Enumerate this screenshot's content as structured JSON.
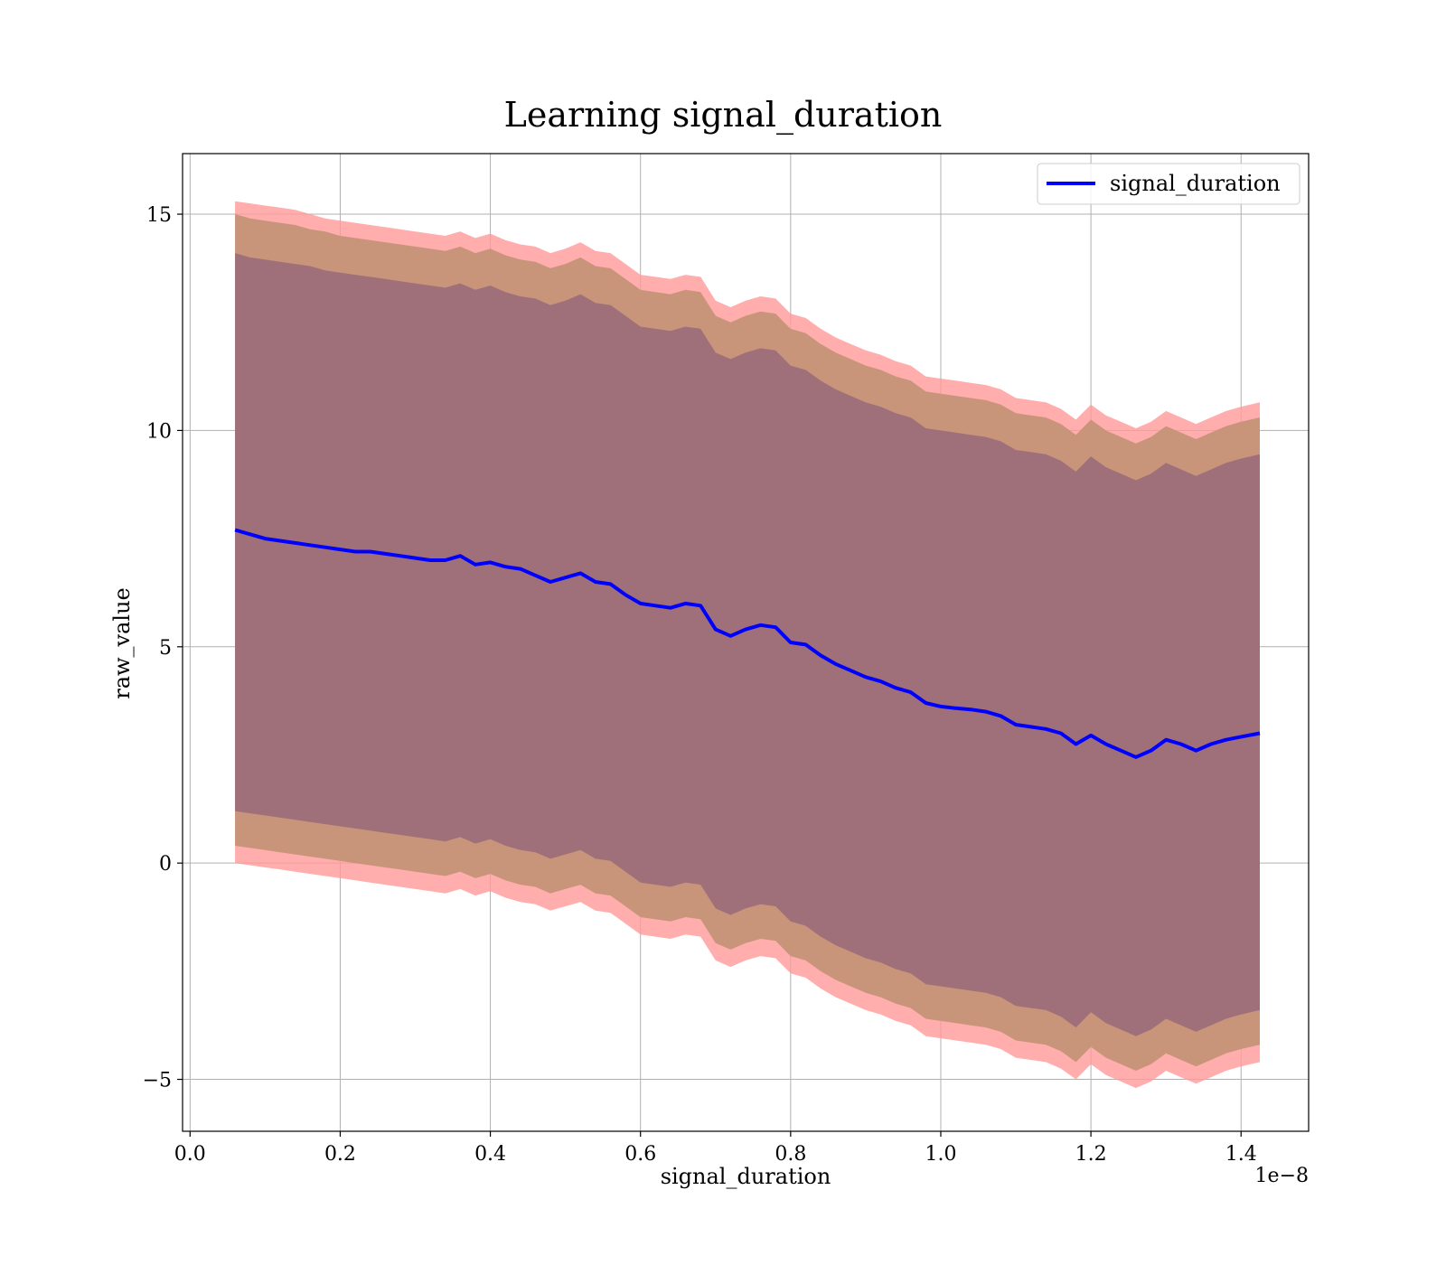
{
  "chart_data": {
    "type": "line",
    "title": "Learning signal_duration",
    "xlabel": "signal_duration",
    "ylabel": "raw_value",
    "x_offset_label": "1e−8",
    "xlim": [
      -0.01,
      1.49
    ],
    "ylim": [
      -6.2,
      16.4
    ],
    "x_ticks": [
      0.0,
      0.2,
      0.4,
      0.6,
      0.8,
      1.0,
      1.2,
      1.4
    ],
    "x_tick_labels": [
      "0.0",
      "0.2",
      "0.4",
      "0.6",
      "0.8",
      "1.0",
      "1.2",
      "1.4"
    ],
    "y_ticks": [
      -5,
      0,
      5,
      10,
      15
    ],
    "y_tick_labels": [
      "−5",
      "0",
      "5",
      "10",
      "15"
    ],
    "grid": true,
    "legend": {
      "position": "top-right",
      "entries": [
        "signal_duration"
      ]
    },
    "colors": {
      "line": "#0000ff",
      "band_outer": "#ff9999",
      "band_middle": "#c8957a",
      "band_inner": "#a0707a"
    },
    "x": [
      0.06,
      0.08,
      0.1,
      0.12,
      0.14,
      0.16,
      0.18,
      0.2,
      0.22,
      0.24,
      0.26,
      0.28,
      0.3,
      0.32,
      0.34,
      0.36,
      0.38,
      0.4,
      0.42,
      0.44,
      0.46,
      0.48,
      0.5,
      0.52,
      0.54,
      0.56,
      0.58,
      0.6,
      0.62,
      0.64,
      0.66,
      0.68,
      0.7,
      0.72,
      0.74,
      0.76,
      0.78,
      0.8,
      0.82,
      0.84,
      0.86,
      0.88,
      0.9,
      0.92,
      0.94,
      0.96,
      0.98,
      1.0,
      1.02,
      1.04,
      1.06,
      1.08,
      1.1,
      1.12,
      1.14,
      1.16,
      1.18,
      1.2,
      1.22,
      1.24,
      1.26,
      1.28,
      1.3,
      1.32,
      1.34,
      1.36,
      1.38,
      1.4,
      1.425
    ],
    "series": [
      {
        "name": "signal_duration",
        "mean": [
          7.7,
          7.6,
          7.5,
          7.45,
          7.4,
          7.35,
          7.3,
          7.25,
          7.2,
          7.2,
          7.15,
          7.1,
          7.05,
          7.0,
          7.0,
          7.1,
          6.9,
          6.95,
          6.85,
          6.8,
          6.65,
          6.5,
          6.6,
          6.7,
          6.5,
          6.45,
          6.2,
          6.0,
          5.95,
          5.9,
          6.0,
          5.95,
          5.4,
          5.25,
          5.4,
          5.5,
          5.45,
          5.1,
          5.05,
          4.8,
          4.6,
          4.45,
          4.3,
          4.2,
          4.05,
          3.95,
          3.7,
          3.62,
          3.58,
          3.55,
          3.5,
          3.4,
          3.2,
          3.15,
          3.1,
          3.0,
          2.75,
          2.95,
          2.75,
          2.6,
          2.45,
          2.6,
          2.85,
          2.75,
          2.6,
          2.75,
          2.85,
          2.92,
          3.0
        ],
        "upper_outer": [
          15.3,
          15.25,
          15.2,
          15.15,
          15.1,
          15.0,
          14.9,
          14.85,
          14.8,
          14.75,
          14.7,
          14.65,
          14.6,
          14.55,
          14.5,
          14.6,
          14.45,
          14.55,
          14.4,
          14.3,
          14.25,
          14.1,
          14.2,
          14.35,
          14.15,
          14.1,
          13.85,
          13.6,
          13.55,
          13.5,
          13.6,
          13.55,
          13.0,
          12.85,
          13.0,
          13.1,
          13.05,
          12.7,
          12.6,
          12.35,
          12.15,
          12.0,
          11.85,
          11.75,
          11.6,
          11.5,
          11.25,
          11.2,
          11.15,
          11.1,
          11.05,
          10.95,
          10.75,
          10.7,
          10.65,
          10.5,
          10.25,
          10.6,
          10.35,
          10.2,
          10.05,
          10.2,
          10.45,
          10.3,
          10.15,
          10.3,
          10.45,
          10.55,
          10.65
        ],
        "upper_middle": [
          15.0,
          14.9,
          14.85,
          14.8,
          14.75,
          14.65,
          14.6,
          14.5,
          14.45,
          14.4,
          14.35,
          14.3,
          14.25,
          14.2,
          14.15,
          14.25,
          14.1,
          14.2,
          14.05,
          13.95,
          13.9,
          13.75,
          13.85,
          14.0,
          13.8,
          13.75,
          13.5,
          13.25,
          13.2,
          13.15,
          13.25,
          13.2,
          12.65,
          12.5,
          12.65,
          12.75,
          12.7,
          12.35,
          12.25,
          12.0,
          11.8,
          11.65,
          11.5,
          11.4,
          11.25,
          11.15,
          10.9,
          10.85,
          10.8,
          10.75,
          10.7,
          10.6,
          10.4,
          10.35,
          10.3,
          10.15,
          9.9,
          10.25,
          10.0,
          9.85,
          9.7,
          9.85,
          10.1,
          9.95,
          9.8,
          9.95,
          10.1,
          10.2,
          10.3
        ],
        "upper_inner": [
          14.1,
          14.0,
          13.95,
          13.9,
          13.85,
          13.8,
          13.7,
          13.65,
          13.6,
          13.55,
          13.5,
          13.45,
          13.4,
          13.35,
          13.3,
          13.4,
          13.25,
          13.35,
          13.2,
          13.1,
          13.05,
          12.9,
          13.0,
          13.15,
          12.95,
          12.9,
          12.65,
          12.4,
          12.35,
          12.3,
          12.4,
          12.35,
          11.8,
          11.65,
          11.8,
          11.9,
          11.85,
          11.5,
          11.4,
          11.15,
          10.95,
          10.8,
          10.65,
          10.55,
          10.4,
          10.3,
          10.05,
          10.0,
          9.95,
          9.9,
          9.85,
          9.75,
          9.55,
          9.5,
          9.45,
          9.3,
          9.05,
          9.4,
          9.15,
          9.0,
          8.85,
          9.0,
          9.25,
          9.1,
          8.95,
          9.1,
          9.25,
          9.35,
          9.45
        ],
        "lower_inner": [
          1.2,
          1.15,
          1.1,
          1.05,
          1.0,
          0.95,
          0.9,
          0.85,
          0.8,
          0.75,
          0.7,
          0.65,
          0.6,
          0.55,
          0.5,
          0.6,
          0.45,
          0.55,
          0.4,
          0.3,
          0.25,
          0.1,
          0.2,
          0.3,
          0.1,
          0.05,
          -0.2,
          -0.45,
          -0.5,
          -0.55,
          -0.45,
          -0.5,
          -1.05,
          -1.2,
          -1.05,
          -0.95,
          -1.0,
          -1.35,
          -1.45,
          -1.7,
          -1.9,
          -2.05,
          -2.2,
          -2.3,
          -2.45,
          -2.55,
          -2.8,
          -2.85,
          -2.9,
          -2.95,
          -3.0,
          -3.1,
          -3.3,
          -3.35,
          -3.4,
          -3.55,
          -3.8,
          -3.45,
          -3.7,
          -3.85,
          -4.0,
          -3.85,
          -3.6,
          -3.75,
          -3.9,
          -3.75,
          -3.6,
          -3.5,
          -3.4
        ],
        "lower_middle": [
          0.4,
          0.35,
          0.3,
          0.25,
          0.2,
          0.15,
          0.1,
          0.05,
          0.0,
          -0.05,
          -0.1,
          -0.15,
          -0.2,
          -0.25,
          -0.3,
          -0.2,
          -0.35,
          -0.25,
          -0.4,
          -0.5,
          -0.55,
          -0.7,
          -0.6,
          -0.5,
          -0.7,
          -0.75,
          -1.0,
          -1.25,
          -1.3,
          -1.35,
          -1.25,
          -1.3,
          -1.85,
          -2.0,
          -1.85,
          -1.75,
          -1.8,
          -2.15,
          -2.25,
          -2.5,
          -2.7,
          -2.85,
          -3.0,
          -3.1,
          -3.25,
          -3.35,
          -3.6,
          -3.65,
          -3.7,
          -3.75,
          -3.8,
          -3.9,
          -4.1,
          -4.15,
          -4.2,
          -4.35,
          -4.6,
          -4.25,
          -4.5,
          -4.65,
          -4.8,
          -4.65,
          -4.4,
          -4.55,
          -4.7,
          -4.55,
          -4.4,
          -4.3,
          -4.2
        ],
        "lower_outer": [
          0.0,
          -0.05,
          -0.1,
          -0.15,
          -0.2,
          -0.25,
          -0.3,
          -0.35,
          -0.4,
          -0.45,
          -0.5,
          -0.55,
          -0.6,
          -0.65,
          -0.7,
          -0.6,
          -0.75,
          -0.65,
          -0.8,
          -0.9,
          -0.95,
          -1.1,
          -1.0,
          -0.9,
          -1.1,
          -1.15,
          -1.4,
          -1.65,
          -1.7,
          -1.75,
          -1.65,
          -1.7,
          -2.25,
          -2.4,
          -2.25,
          -2.15,
          -2.2,
          -2.55,
          -2.65,
          -2.9,
          -3.1,
          -3.25,
          -3.4,
          -3.5,
          -3.65,
          -3.75,
          -4.0,
          -4.05,
          -4.1,
          -4.15,
          -4.2,
          -4.3,
          -4.5,
          -4.55,
          -4.6,
          -4.75,
          -5.0,
          -4.65,
          -4.9,
          -5.05,
          -5.2,
          -5.05,
          -4.8,
          -4.95,
          -5.1,
          -4.95,
          -4.8,
          -4.7,
          -4.6
        ]
      }
    ]
  }
}
